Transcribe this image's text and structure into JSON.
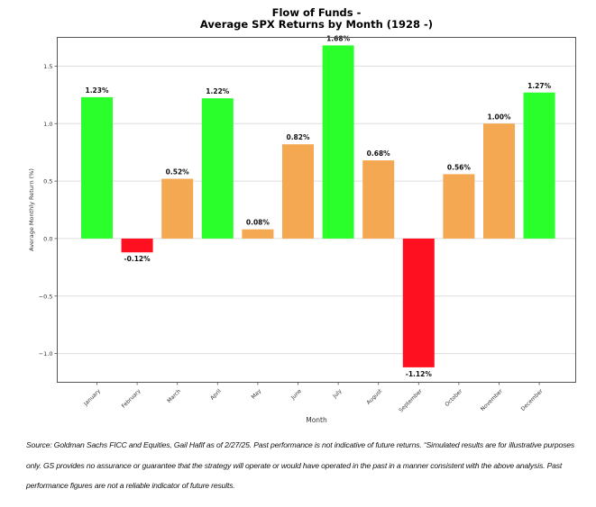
{
  "chart_data": {
    "type": "bar",
    "title": "Flow of Funds -",
    "subtitle": "Average SPX Returns by Month (1928 -)",
    "xlabel": "Month",
    "ylabel": "Average Monthly Return (%)",
    "ylim": [
      -1.25,
      1.75
    ],
    "yticks": [
      -1.0,
      -0.5,
      0.0,
      0.5,
      1.0,
      1.5
    ],
    "ytick_labels": [
      "−1.0",
      "−0.5",
      "0.0",
      "0.5",
      "1.0",
      "1.5"
    ],
    "grid": "horizontal",
    "categories": [
      "January",
      "February",
      "March",
      "April",
      "May",
      "June",
      "July",
      "August",
      "September",
      "October",
      "November",
      "December"
    ],
    "values": [
      1.23,
      -0.12,
      0.52,
      1.22,
      0.08,
      0.82,
      1.68,
      0.68,
      -1.12,
      0.56,
      1.0,
      1.27
    ],
    "data_labels": [
      "1.23%",
      "-0.12%",
      "0.52%",
      "1.22%",
      "0.08%",
      "0.82%",
      "1.68%",
      "0.68%",
      "-1.12%",
      "0.56%",
      "1.00%",
      "1.27%"
    ],
    "colors": {
      "high": "#2bff2b",
      "negative": "#ff1020",
      "moderate": "#f4a851"
    },
    "bar_color_groups": [
      "high",
      "negative",
      "moderate",
      "high",
      "moderate",
      "moderate",
      "high",
      "moderate",
      "negative",
      "moderate",
      "moderate",
      "high"
    ]
  },
  "footnote": "Source: Goldman Sachs FICC and Equities, Gail Hafif as of 2/27/25. Past performance is not indicative of future returns. “Simulated results are for illustrative purposes only. GS provides no assurance or guarantee that the strategy will operate or would have operated in the past in a manner consistent with the above analysis. Past performance figures are not a reliable indicator of future results."
}
